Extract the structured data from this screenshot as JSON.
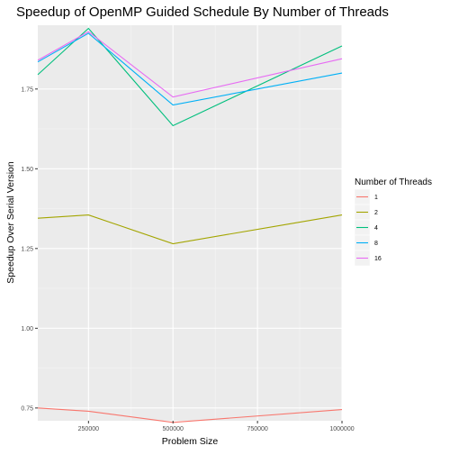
{
  "chart_data": {
    "type": "line",
    "title": "Speedup of OpenMP Guided Schedule By Number of Threads",
    "xlabel": "Problem Size",
    "ylabel": "Speedup Over Serial Version",
    "xlim": [
      100000,
      1000000
    ],
    "ylim": [
      0.71,
      1.95
    ],
    "x_ticks": [
      250000,
      500000,
      750000,
      1000000
    ],
    "x_tick_labels": [
      "250000",
      "500000",
      "750000",
      "1000000"
    ],
    "y_ticks": [
      0.75,
      1.0,
      1.25,
      1.5,
      1.75
    ],
    "y_tick_labels": [
      "0.75",
      "1.00",
      "1.25",
      "1.50",
      "1.75"
    ],
    "grid": true,
    "legend": {
      "title": "Number of Threads",
      "position": "right"
    },
    "x": [
      100000,
      250000,
      500000,
      1000000
    ],
    "series": [
      {
        "name": "1",
        "color": "#F8766D",
        "values": [
          0.75,
          0.74,
          0.705,
          0.745
        ]
      },
      {
        "name": "2",
        "color": "#A3A500",
        "values": [
          1.345,
          1.355,
          1.265,
          1.355
        ]
      },
      {
        "name": "4",
        "color": "#00BF7D",
        "values": [
          1.795,
          1.94,
          1.635,
          1.885
        ]
      },
      {
        "name": "8",
        "color": "#00B0F6",
        "values": [
          1.835,
          1.925,
          1.7,
          1.8
        ]
      },
      {
        "name": "16",
        "color": "#E76BF3",
        "values": [
          1.84,
          1.93,
          1.725,
          1.845
        ]
      }
    ]
  }
}
